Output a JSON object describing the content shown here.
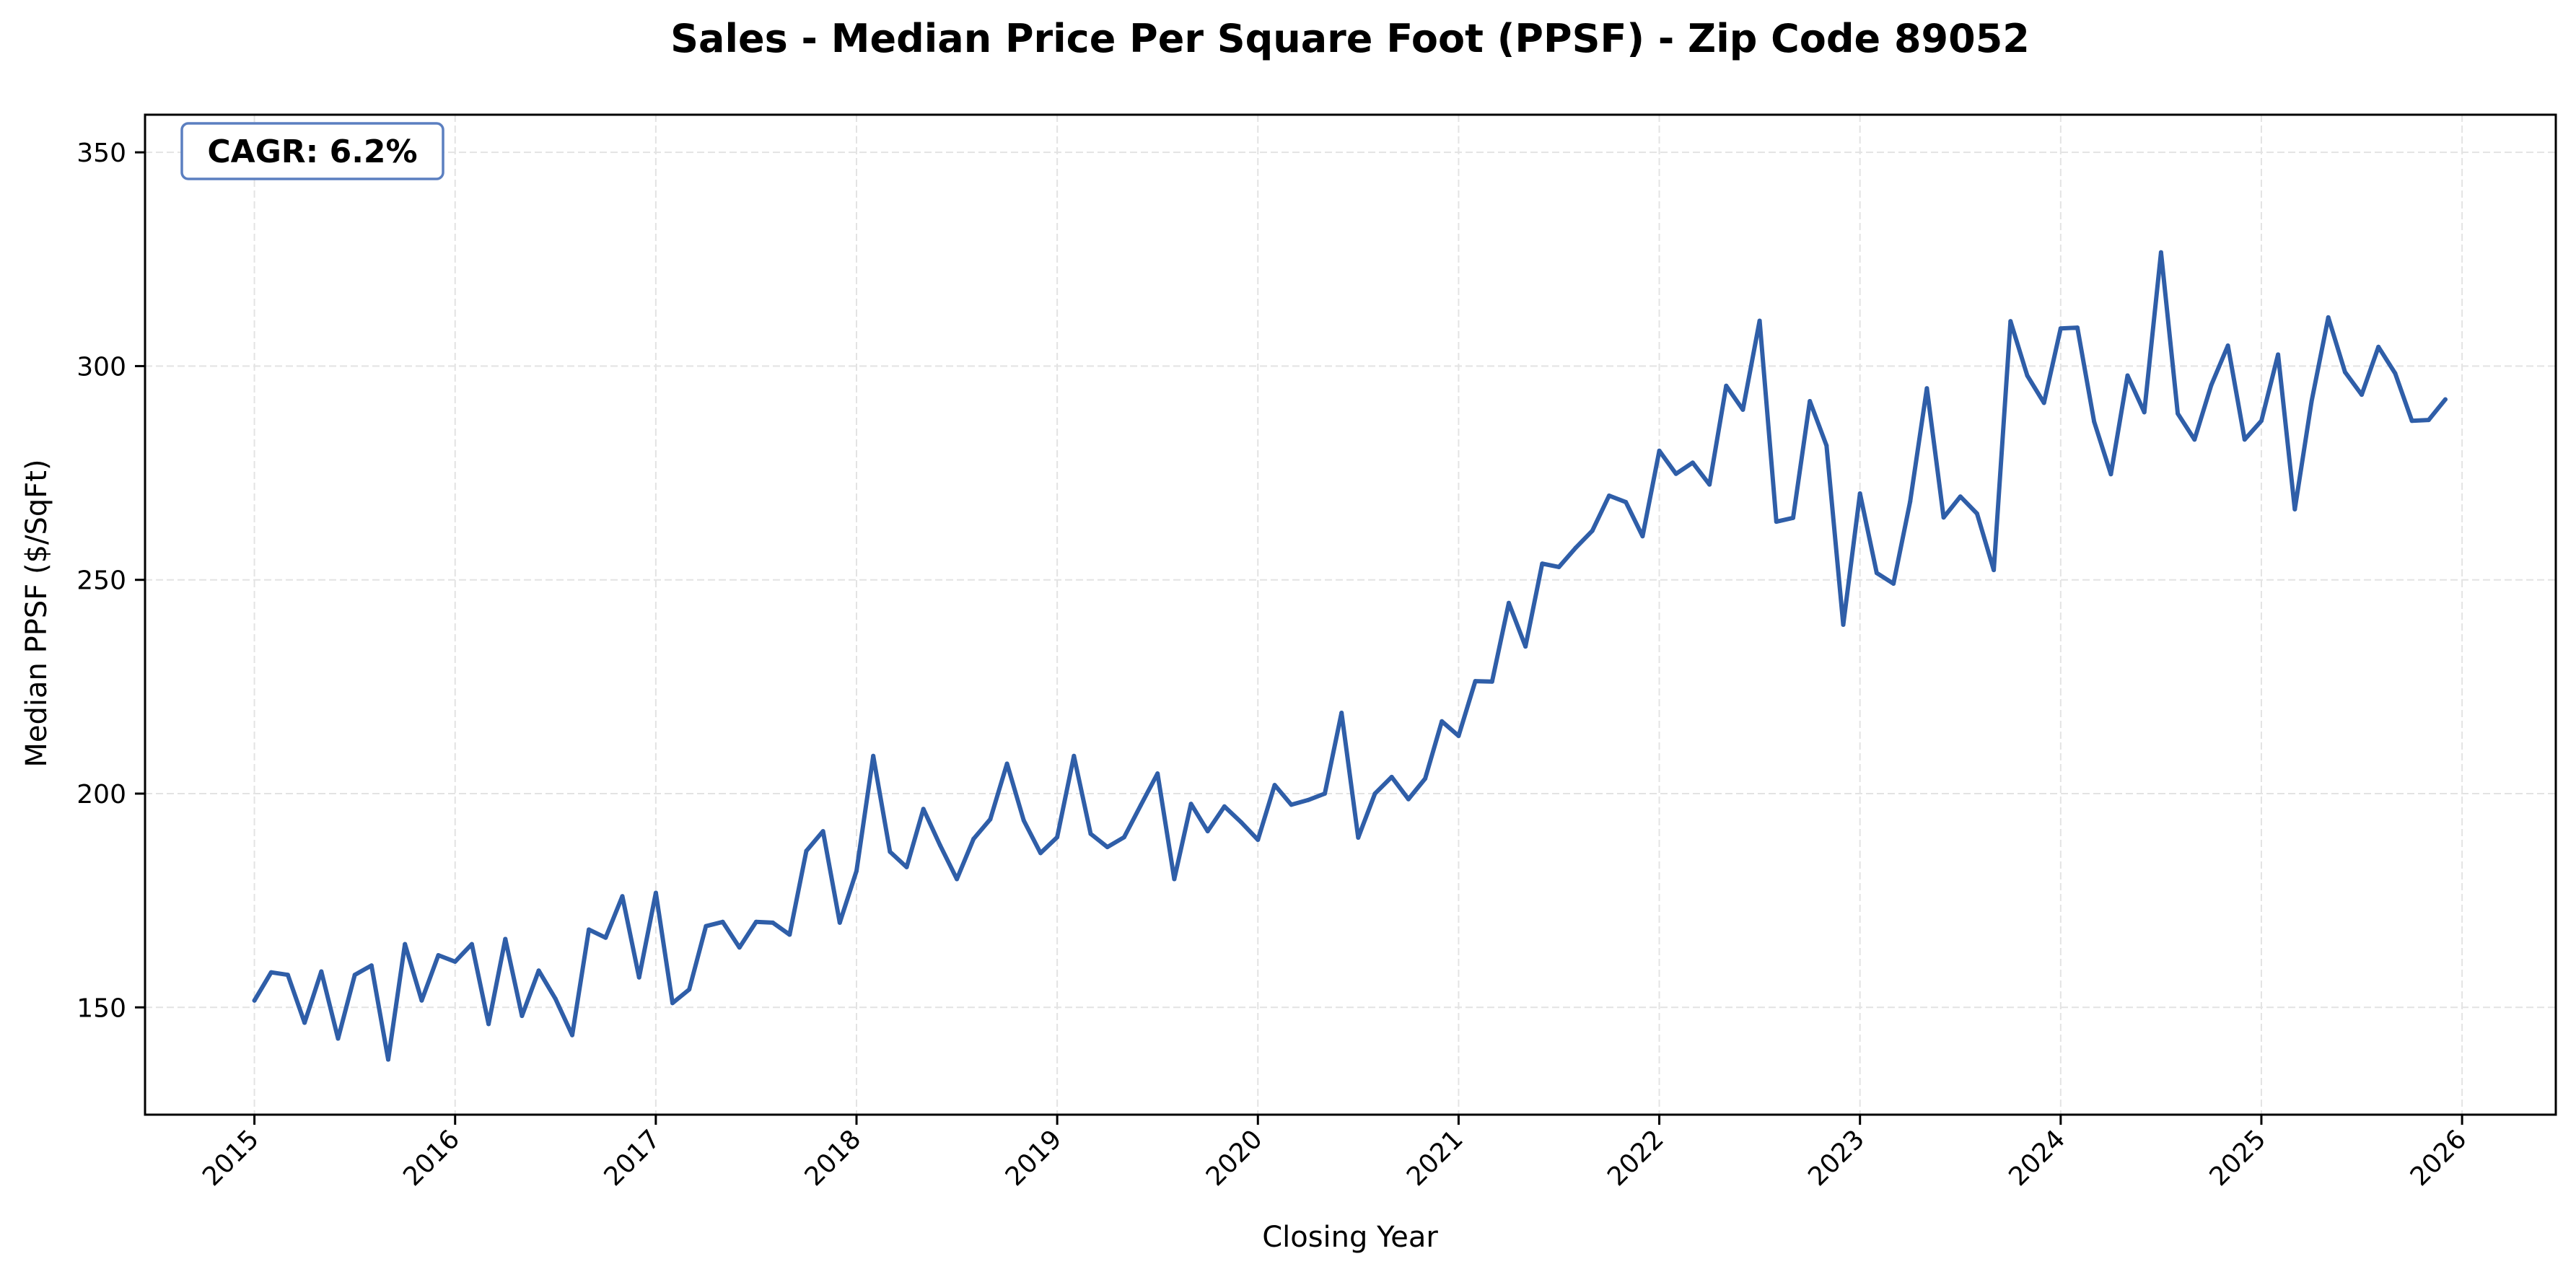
{
  "chart_data": {
    "type": "line",
    "title": "Sales - Median Price Per Square Foot (PPSF) - Zip Code 89052",
    "xlabel": "Closing Year",
    "ylabel": "Median PPSF ($/SqFt)",
    "xlim": [
      2014.455,
      2026.467
    ],
    "ylim": [
      124.9,
      358.8
    ],
    "x_ticks": [
      2015,
      2016,
      2017,
      2018,
      2019,
      2020,
      2021,
      2022,
      2023,
      2024,
      2025,
      2026
    ],
    "x_tick_labels": [
      "2015",
      "2016",
      "2017",
      "2018",
      "2019",
      "2020",
      "2021",
      "2022",
      "2023",
      "2024",
      "2025",
      "2026"
    ],
    "y_ticks": [
      150,
      200,
      250,
      300,
      350
    ],
    "y_tick_labels": [
      "150",
      "200",
      "250",
      "300",
      "350"
    ],
    "grid": true,
    "annotation": "CAGR: 6.2%",
    "annotation_placement": "top-left",
    "line_color": "#2f5ea8",
    "annotation_border_color": "#5b7fc0",
    "series": [
      {
        "name": "Median PPSF",
        "start_year": 2015,
        "frequency": "monthly",
        "values": [
          151.6,
          158.2,
          157.6,
          146.4,
          158.4,
          142.7,
          157.6,
          159.8,
          137.8,
          164.8,
          151.6,
          162.2,
          160.7,
          164.8,
          146.1,
          166.0,
          148.0,
          158.6,
          152.0,
          143.5,
          168.2,
          166.3,
          176.0,
          157.0,
          176.8,
          151.0,
          154.2,
          169.0,
          170.0,
          164.0,
          170.0,
          169.8,
          167.0,
          186.6,
          191.2,
          169.8,
          181.9,
          208.8,
          186.4,
          182.8,
          196.4,
          187.9,
          180.0,
          189.4,
          194.0,
          207.0,
          193.7,
          186.1,
          189.8,
          208.8,
          190.6,
          187.5,
          189.8,
          197.3,
          204.7,
          180.0,
          197.6,
          191.2,
          197.0,
          193.3,
          189.2,
          202.0,
          197.4,
          198.5,
          200.0,
          218.9,
          189.7,
          200.0,
          203.9,
          198.7,
          203.5,
          216.9,
          213.5,
          226.3,
          226.2,
          244.6,
          234.4,
          253.8,
          253.0,
          257.5,
          261.5,
          269.7,
          268.2,
          260.2,
          280.2,
          274.8,
          277.4,
          272.3,
          295.4,
          289.8,
          310.6,
          263.6,
          264.5,
          291.8,
          281.4,
          239.5,
          270.2,
          251.6,
          249.1,
          268.3,
          294.8,
          264.6,
          269.5,
          265.5,
          252.3,
          310.5,
          297.8,
          291.4,
          308.8,
          309.0,
          287.0,
          274.7,
          297.8,
          289.2,
          326.6,
          288.9,
          282.8,
          295.5,
          304.8,
          282.8,
          287.2,
          302.7,
          266.5,
          291.7,
          311.4,
          298.6,
          293.3,
          304.5,
          298.3,
          287.2,
          287.4,
          292.2
        ]
      }
    ]
  }
}
